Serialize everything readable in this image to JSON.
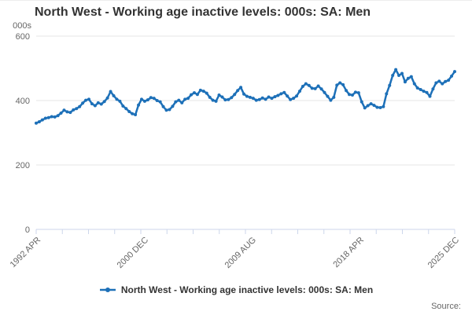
{
  "header": {
    "title": "North West - Working age inactive levels: 000s: SA: Men"
  },
  "chart_data": {
    "type": "line",
    "title": "North West - Working age inactive levels: 000s: SA: Men",
    "ylabel": "000s",
    "xlabel": "",
    "ylim": [
      0,
      600
    ],
    "y_ticks": [
      600,
      400,
      200,
      0
    ],
    "grid": "horizontal-only",
    "legend_position": "bottom-center",
    "x_range_months": [
      0,
      404
    ],
    "x_ticks": [
      {
        "label": "1992 APR",
        "month": 0
      },
      {
        "label": "2000 DEC",
        "month": 104
      },
      {
        "label": "2009 AUG",
        "month": 208
      },
      {
        "label": "2018 APR",
        "month": 312
      },
      {
        "label": "2025 DEC",
        "month": 404
      }
    ],
    "minor_tick_intervals": 16,
    "series": [
      {
        "name": "North West - Working age inactive levels: 000s: SA: Men",
        "color": "#1d70b8",
        "x_start": "1992 APR",
        "x_end": "2025 DEC",
        "note": "values estimated from plot, evenly spaced Apr 1992 - Dec 2025, thousands",
        "values": [
          330,
          334,
          340,
          345,
          347,
          350,
          349,
          353,
          361,
          370,
          365,
          363,
          371,
          375,
          381,
          392,
          401,
          404,
          390,
          384,
          393,
          389,
          397,
          408,
          428,
          415,
          404,
          398,
          383,
          375,
          366,
          359,
          356,
          386,
          404,
          398,
          402,
          409,
          407,
          400,
          396,
          381,
          370,
          372,
          382,
          396,
          401,
          393,
          404,
          407,
          418,
          424,
          419,
          432,
          429,
          423,
          410,
          401,
          398,
          417,
          411,
          402,
          403,
          409,
          419,
          431,
          441,
          420,
          413,
          410,
          407,
          401,
          403,
          408,
          404,
          411,
          407,
          412,
          416,
          421,
          425,
          414,
          403,
          407,
          414,
          429,
          444,
          452,
          447,
          438,
          437,
          445,
          436,
          425,
          413,
          401,
          410,
          448,
          455,
          449,
          431,
          419,
          417,
          426,
          424,
          396,
          377,
          384,
          390,
          385,
          379,
          378,
          381,
          421,
          447,
          478,
          496,
          478,
          484,
          458,
          469,
          474,
          452,
          439,
          434,
          429,
          425,
          413,
          436,
          455,
          460,
          452,
          459,
          463,
          476,
          490
        ]
      }
    ]
  },
  "legend": {
    "label": "North West - Working age inactive levels: 000s: SA: Men",
    "marker_color": "#1d70b8"
  },
  "footer": {
    "source_label": "Source:"
  },
  "colors": {
    "line": "#1d70b8",
    "grid_line": "#e6e6e6",
    "axis_line": "#ccd6eb",
    "axis_text": "#666666",
    "title_text": "#333333"
  }
}
